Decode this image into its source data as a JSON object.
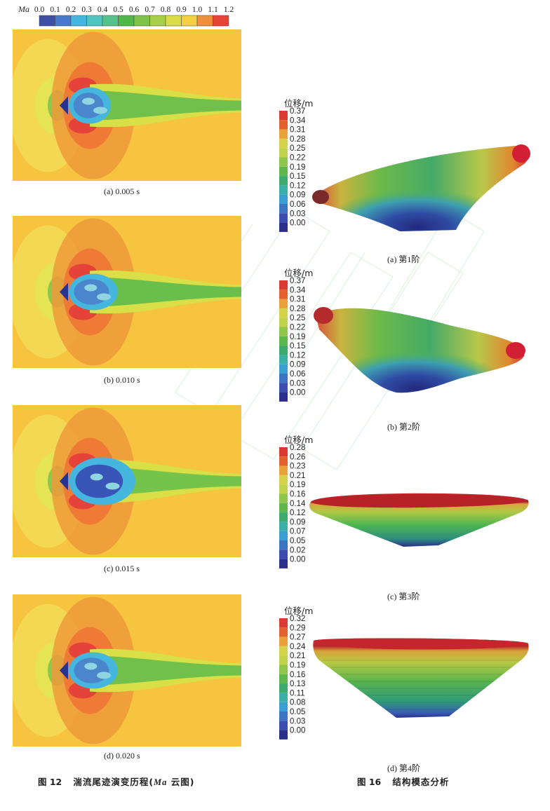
{
  "top_colorbar": {
    "var_label": "Ma",
    "ticks": [
      "0.0",
      "0.1",
      "0.2",
      "0.3",
      "0.4",
      "0.5",
      "0.6",
      "0.7",
      "0.8",
      "0.9",
      "1.0",
      "1.1",
      "1.2"
    ],
    "colors": [
      "#3f4fa5",
      "#4679c9",
      "#45b7de",
      "#51c5c2",
      "#55c28c",
      "#4fb848",
      "#7ec34a",
      "#a8cf48",
      "#d9dd43",
      "#f5cf3f",
      "#ef8e3c",
      "#e54437"
    ]
  },
  "cfd_panels": [
    {
      "caption": "(a) 0.005 s",
      "wake_level": 0.55,
      "bubble": "small"
    },
    {
      "caption": "(b) 0.010 s",
      "wake_level": 0.6,
      "bubble": "medium"
    },
    {
      "caption": "(c) 0.015 s",
      "wake_level": 0.5,
      "bubble": "large"
    },
    {
      "caption": "(d) 0.020 s",
      "wake_level": 0.55,
      "bubble": "medium"
    }
  ],
  "modal_panels": [
    {
      "cbar_title": "位移/m",
      "ticks": [
        "0.37",
        "0.34",
        "0.31",
        "0.28",
        "0.25",
        "0.22",
        "0.19",
        "0.15",
        "0.12",
        "0.09",
        "0.06",
        "0.03",
        "0.00"
      ],
      "caption": "(a) 第1阶",
      "mode": 1
    },
    {
      "cbar_title": "位移/m",
      "ticks": [
        "0.37",
        "0.34",
        "0.31",
        "0.28",
        "0.25",
        "0.22",
        "0.19",
        "0.15",
        "0.12",
        "0.09",
        "0.06",
        "0.03",
        "0.00"
      ],
      "caption": "(b) 第2阶",
      "mode": 2
    },
    {
      "cbar_title": "位移/m",
      "ticks": [
        "0.28",
        "0.26",
        "0.23",
        "0.21",
        "0.19",
        "0.16",
        "0.14",
        "0.12",
        "0.09",
        "0.07",
        "0.05",
        "0.02",
        "0.00"
      ],
      "caption": "(c) 第3阶",
      "mode": 3
    },
    {
      "cbar_title": "位移/m",
      "ticks": [
        "0.32",
        "0.29",
        "0.27",
        "0.24",
        "0.21",
        "0.19",
        "0.16",
        "0.13",
        "0.11",
        "0.08",
        "0.05",
        "0.03",
        "0.00"
      ],
      "caption": "(d) 第4阶",
      "mode": 4
    }
  ],
  "figure_titles": {
    "left_num": "图 12",
    "left_text": "湍流尾迹演变历程(",
    "left_ma": "Ma",
    "left_suffix": " 云图)",
    "right_num": "图 16",
    "right_text": "结构模态分析"
  },
  "colors": {
    "background_yellow": "#f6c43e",
    "orange": "#ef9a3b",
    "red": "#e5423a",
    "green": "#5dbb4c",
    "blue_dark": "#27338f"
  }
}
